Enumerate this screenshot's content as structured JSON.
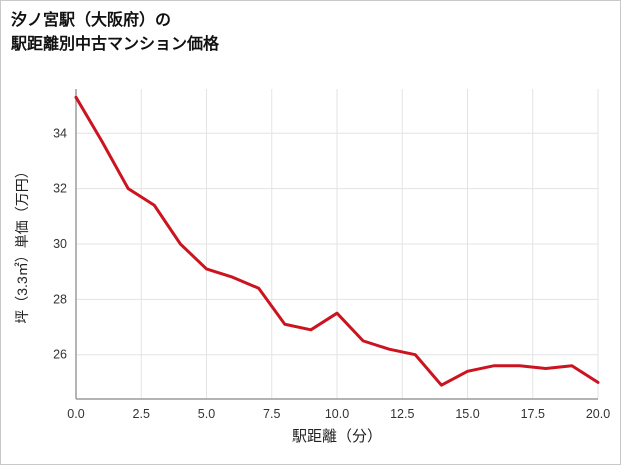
{
  "title": {
    "line1": "汐ノ宮駅（大阪府）の",
    "line2": "駅距離別中古マンション価格"
  },
  "chart_data": {
    "type": "line",
    "title": "汐ノ宮駅（大阪府）の 駅距離別中古マンション価格",
    "xlabel": "駅距離（分）",
    "ylabel": "坪（3.3㎡）単価（万円）",
    "x": [
      0,
      1,
      2,
      3,
      4,
      5,
      6,
      7,
      8,
      9,
      10,
      11,
      12,
      13,
      14,
      15,
      16,
      17,
      18,
      19,
      20
    ],
    "values": [
      35.3,
      33.7,
      32.0,
      31.4,
      30.0,
      29.1,
      28.8,
      28.4,
      27.1,
      26.9,
      27.5,
      26.5,
      26.2,
      26.0,
      24.9,
      25.4,
      25.6,
      25.6,
      25.5,
      25.6,
      25.0
    ],
    "xlim": [
      0,
      20
    ],
    "ylim": [
      24.4,
      35.6
    ],
    "xticks": [
      0,
      2.5,
      5,
      7.5,
      10,
      12.5,
      15,
      17.5,
      20
    ],
    "xtick_labels": [
      "0.0",
      "2.5",
      "5.0",
      "7.5",
      "10.0",
      "12.5",
      "15.0",
      "17.5",
      "20.0"
    ],
    "yticks": [
      26,
      28,
      30,
      32,
      34
    ],
    "ytick_labels": [
      "26",
      "28",
      "30",
      "32",
      "34"
    ],
    "grid": true,
    "legend": false,
    "line_color": "#cc1420",
    "grid_color": "#e3e3e3",
    "axis_color": "#9b9b9b",
    "tick_color": "#333333"
  }
}
